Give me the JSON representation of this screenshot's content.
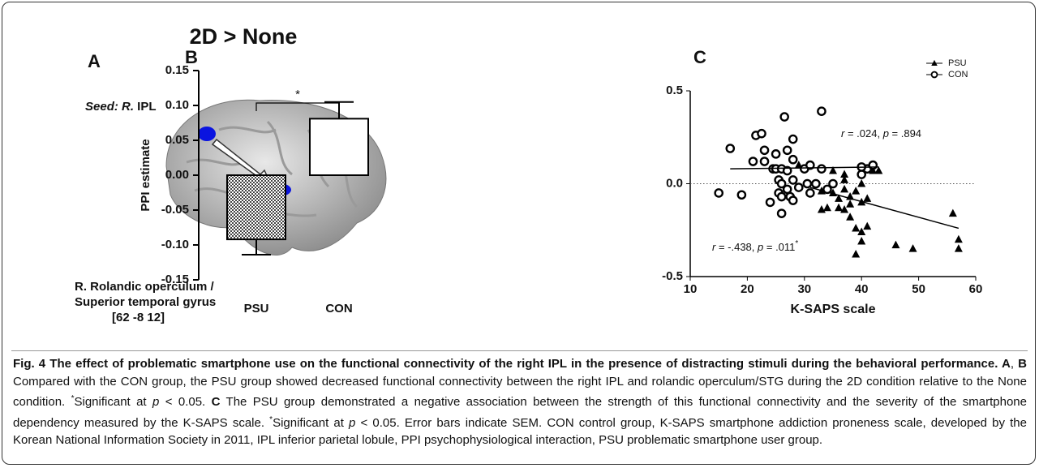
{
  "figure": {
    "title": "2D > None",
    "panel_a": {
      "letter": "A",
      "seed_label": [
        {
          "text": "Seed: R.",
          "style": "italic"
        },
        {
          "text": " IPL",
          "style": "plain"
        }
      ],
      "region_lines": [
        "R. Rolandic operculum /",
        "Superior temporal gyrus",
        "[62 -8 12]"
      ]
    }
  },
  "chart_data": [
    {
      "type": "bar",
      "letter": "B",
      "ylabel": "PPI estimate",
      "categories": [
        "PSU",
        "CON"
      ],
      "values": [
        -0.092,
        0.081
      ],
      "errors": [
        0.022,
        0.024
      ],
      "colors": [
        "#8c8c8c",
        "#ffffff"
      ],
      "ylim": [
        -0.15,
        0.15
      ],
      "yticks": [
        0.15,
        {
          "value": 0.1,
          "label": "0.10"
        },
        0.05,
        {
          "value": 0,
          "label": "0.00"
        },
        -0.05,
        {
          "value": -0.1,
          "label": "-0.10"
        },
        -0.15
      ],
      "significance": "*"
    },
    {
      "type": "scatter",
      "letter": "C",
      "xlabel": "K-SAPS scale",
      "xlim": [
        10,
        60
      ],
      "xticks": [
        10,
        20,
        30,
        40,
        50,
        60
      ],
      "ylim": [
        -0.5,
        0.5
      ],
      "yticks": [
        0.5,
        {
          "value": 0,
          "label": "0.0"
        },
        -0.5
      ],
      "zero_line": true,
      "legend": "top-right",
      "series": [
        {
          "name": "PSU",
          "color": "#000000",
          "marker": "triangle",
          "x": [
            29,
            31,
            33,
            33,
            34,
            35,
            35,
            36,
            36,
            37,
            37,
            37,
            37,
            38,
            38,
            38,
            39,
            39,
            39,
            40,
            40,
            40,
            41,
            41,
            42,
            43,
            46,
            49,
            56,
            57,
            57,
            40
          ],
          "values": [
            0.1,
            0.1,
            -0.04,
            -0.14,
            -0.13,
            0.07,
            -0.05,
            -0.08,
            -0.13,
            0.05,
            0.02,
            -0.03,
            -0.14,
            -0.11,
            -0.07,
            -0.18,
            -0.04,
            -0.24,
            -0.38,
            0.0,
            -0.1,
            -0.26,
            -0.08,
            -0.23,
            0.07,
            0.07,
            -0.33,
            -0.35,
            -0.16,
            -0.3,
            -0.35,
            -0.31
          ],
          "fit": {
            "x": [
              31,
              57
            ],
            "y": [
              -0.02,
              -0.24
            ]
          }
        },
        {
          "name": "CON",
          "color": "#000000",
          "marker": "circle-open",
          "x": [
            15,
            17,
            19,
            21,
            21.5,
            22.5,
            23,
            23,
            24,
            24.5,
            25,
            25,
            25.5,
            25.5,
            26,
            26,
            26,
            26,
            26.5,
            27,
            27,
            27,
            27.5,
            28,
            28,
            28,
            28,
            29,
            30,
            30.5,
            31,
            31,
            32,
            33,
            33,
            34,
            35,
            40,
            41,
            42,
            40
          ],
          "values": [
            -0.05,
            0.19,
            -0.06,
            0.12,
            0.26,
            0.27,
            0.18,
            0.12,
            -0.1,
            0.08,
            0.16,
            0.08,
            0.02,
            -0.05,
            0.08,
            0.0,
            -0.07,
            -0.16,
            0.36,
            0.18,
            0.07,
            -0.03,
            -0.07,
            0.24,
            0.13,
            0.02,
            -0.09,
            -0.02,
            0.08,
            0.0,
            0.1,
            -0.05,
            0.0,
            0.39,
            0.08,
            -0.03,
            0.0,
            0.05,
            0.08,
            0.1,
            0.09
          ],
          "fit": {
            "x": [
              17,
              43
            ],
            "y": [
              0.08,
              0.09
            ]
          }
        }
      ],
      "annotations": [
        [
          {
            "text": "r",
            "style": "italic"
          },
          {
            "text": " = .024, ",
            "style": "plain"
          },
          {
            "text": "p",
            "style": "italic"
          },
          {
            "text": " = .894",
            "style": "plain"
          }
        ],
        [
          {
            "text": "r",
            "style": "italic"
          },
          {
            "text": " = -.438, ",
            "style": "plain"
          },
          {
            "text": "p",
            "style": "italic"
          },
          {
            "text": " = .011",
            "style": "plain"
          },
          {
            "text": "*",
            "style": "sup"
          }
        ]
      ]
    }
  ],
  "caption": {
    "runs": [
      {
        "text": "Fig. 4 The effect of problematic smartphone use on the functional connectivity of the right IPL in the presence of distracting stimuli during the behavioral performance.",
        "style": "bold"
      },
      {
        "text": " A",
        "style": "bold"
      },
      {
        "text": ", ",
        "style": "plain"
      },
      {
        "text": "B",
        "style": "bold"
      },
      {
        "text": " Compared with the CON group, the PSU group showed decreased functional connectivity between the right IPL and rolandic operculum/STG during the 2D condition relative to the None condition. ",
        "style": "plain"
      },
      {
        "text": "*",
        "style": "sup"
      },
      {
        "text": "Significant at ",
        "style": "plain"
      },
      {
        "text": "p",
        "style": "italic"
      },
      {
        "text": " < 0.05. ",
        "style": "plain"
      },
      {
        "text": "C",
        "style": "bold"
      },
      {
        "text": " The PSU group demonstrated a negative association between the strength of this functional connectivity and the severity of the smartphone dependency measured by the K-SAPS scale. ",
        "style": "plain"
      },
      {
        "text": "*",
        "style": "sup"
      },
      {
        "text": "Significant at ",
        "style": "plain"
      },
      {
        "text": "p",
        "style": "italic"
      },
      {
        "text": " < 0.05. Error bars indicate SEM. CON control group, K-SAPS smartphone addiction proneness scale, developed by the Korean National Information Society in 2011, IPL inferior parietal lobule, PPI psychophysiological interaction, PSU problematic smartphone user group.",
        "style": "plain"
      }
    ]
  }
}
